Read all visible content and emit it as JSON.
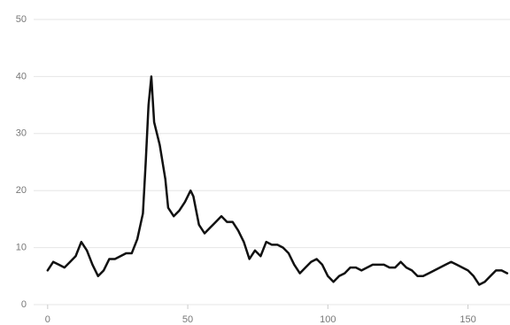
{
  "chart_data": {
    "type": "line",
    "x": [
      0,
      2,
      4,
      6,
      8,
      10,
      12,
      14,
      16,
      18,
      20,
      22,
      24,
      26,
      28,
      30,
      32,
      34,
      35,
      36,
      37,
      38,
      40,
      42,
      43,
      45,
      47,
      49,
      51,
      52,
      54,
      56,
      58,
      60,
      62,
      64,
      66,
      68,
      70,
      72,
      74,
      76,
      78,
      80,
      82,
      84,
      86,
      88,
      90,
      92,
      94,
      96,
      98,
      100,
      102,
      104,
      106,
      108,
      110,
      112,
      114,
      116,
      118,
      120,
      122,
      124,
      126,
      128,
      130,
      132,
      134,
      136,
      138,
      140,
      142,
      144,
      146,
      148,
      150,
      152,
      154,
      156,
      158,
      160,
      162,
      164
    ],
    "values": [
      6,
      7.5,
      7,
      6.5,
      7.5,
      8.5,
      11,
      9.5,
      7,
      5,
      6,
      8,
      8,
      8.5,
      9,
      9,
      11.5,
      16,
      25,
      35,
      40,
      32,
      28,
      22,
      17,
      15.5,
      16.5,
      18,
      20,
      19,
      14,
      12.5,
      13.5,
      14.5,
      15.5,
      14.5,
      14.5,
      13,
      11,
      8,
      9.5,
      8.5,
      11,
      10.5,
      10.5,
      10,
      9,
      7,
      5.5,
      6.5,
      7.5,
      8,
      7,
      5,
      4,
      5,
      5.5,
      6.5,
      6.5,
      6,
      6.5,
      7,
      7,
      7,
      6.5,
      6.5,
      7.5,
      6.5,
      6,
      5,
      5,
      5.5,
      6,
      6.5,
      7,
      7.5,
      7,
      6.5,
      6,
      5,
      3.5,
      4,
      5,
      6,
      6,
      5.5
    ],
    "color": "#111111",
    "xlim": [
      -5,
      165
    ],
    "xticks": [
      0,
      50,
      100,
      150
    ],
    "ylim": [
      0,
      50
    ],
    "yticks": [
      0,
      10,
      20,
      30,
      40,
      50
    ],
    "grid": true
  }
}
